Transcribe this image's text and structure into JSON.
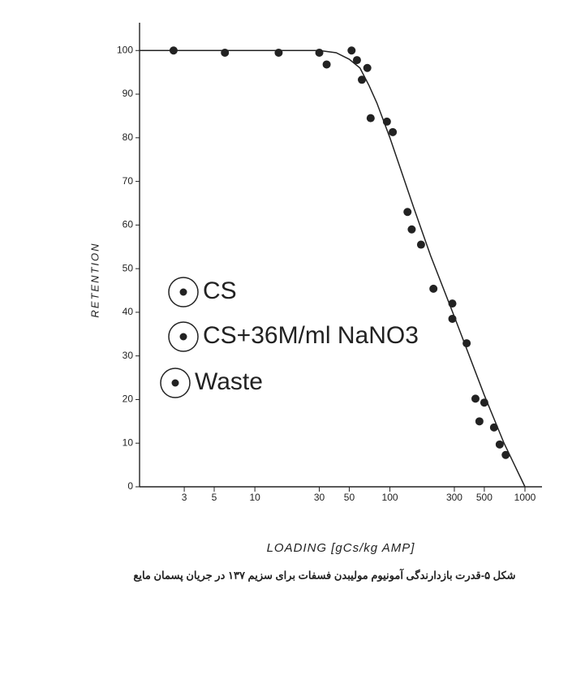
{
  "chart_data": {
    "type": "scatter",
    "xlabel": "LOADING [gCs/kg AMP]",
    "ylabel": "RETENTION",
    "caption": "شکل ۵-قدرت بازدارندگی آمونیوم مولیبدن فسفات برای سزیم ۱۳۷ در جریان پسمان مایع",
    "log_x": true,
    "xlim": [
      1.4,
      1000
    ],
    "xticks": [
      3,
      5,
      10,
      30,
      50,
      100,
      300,
      500,
      1000
    ],
    "ylim": [
      0,
      106
    ],
    "yticks": [
      0,
      10,
      20,
      30,
      40,
      50,
      60,
      70,
      80,
      90,
      100
    ],
    "legend_entries": [
      "CS",
      "CS+36M/ml NaNO3",
      "Waste"
    ],
    "series": [
      {
        "type": "scatter",
        "color": "#222222",
        "x": [
          2.5,
          6,
          15,
          30,
          34,
          52,
          57,
          62,
          68,
          72,
          95,
          105,
          135,
          145,
          170,
          210,
          290,
          290,
          370,
          430,
          460,
          500,
          590,
          650,
          720
        ],
        "values": [
          100,
          99.5,
          99.5,
          99.5,
          96.8,
          100,
          97.8,
          93.3,
          96,
          84.5,
          83.7,
          81.3,
          63,
          59,
          55.5,
          45.4,
          42,
          38.5,
          32.9,
          20.2,
          15,
          19.3,
          13.6,
          9.7,
          7.3
        ]
      },
      {
        "type": "line",
        "color": "#222222",
        "x": [
          1.4,
          10,
          30,
          40,
          50,
          60,
          70,
          80,
          100,
          150,
          200,
          300,
          500,
          700,
          1000
        ],
        "values": [
          100,
          100,
          100,
          99.5,
          98,
          96,
          92,
          88,
          80,
          64,
          53,
          39,
          21,
          10,
          0
        ]
      }
    ]
  }
}
